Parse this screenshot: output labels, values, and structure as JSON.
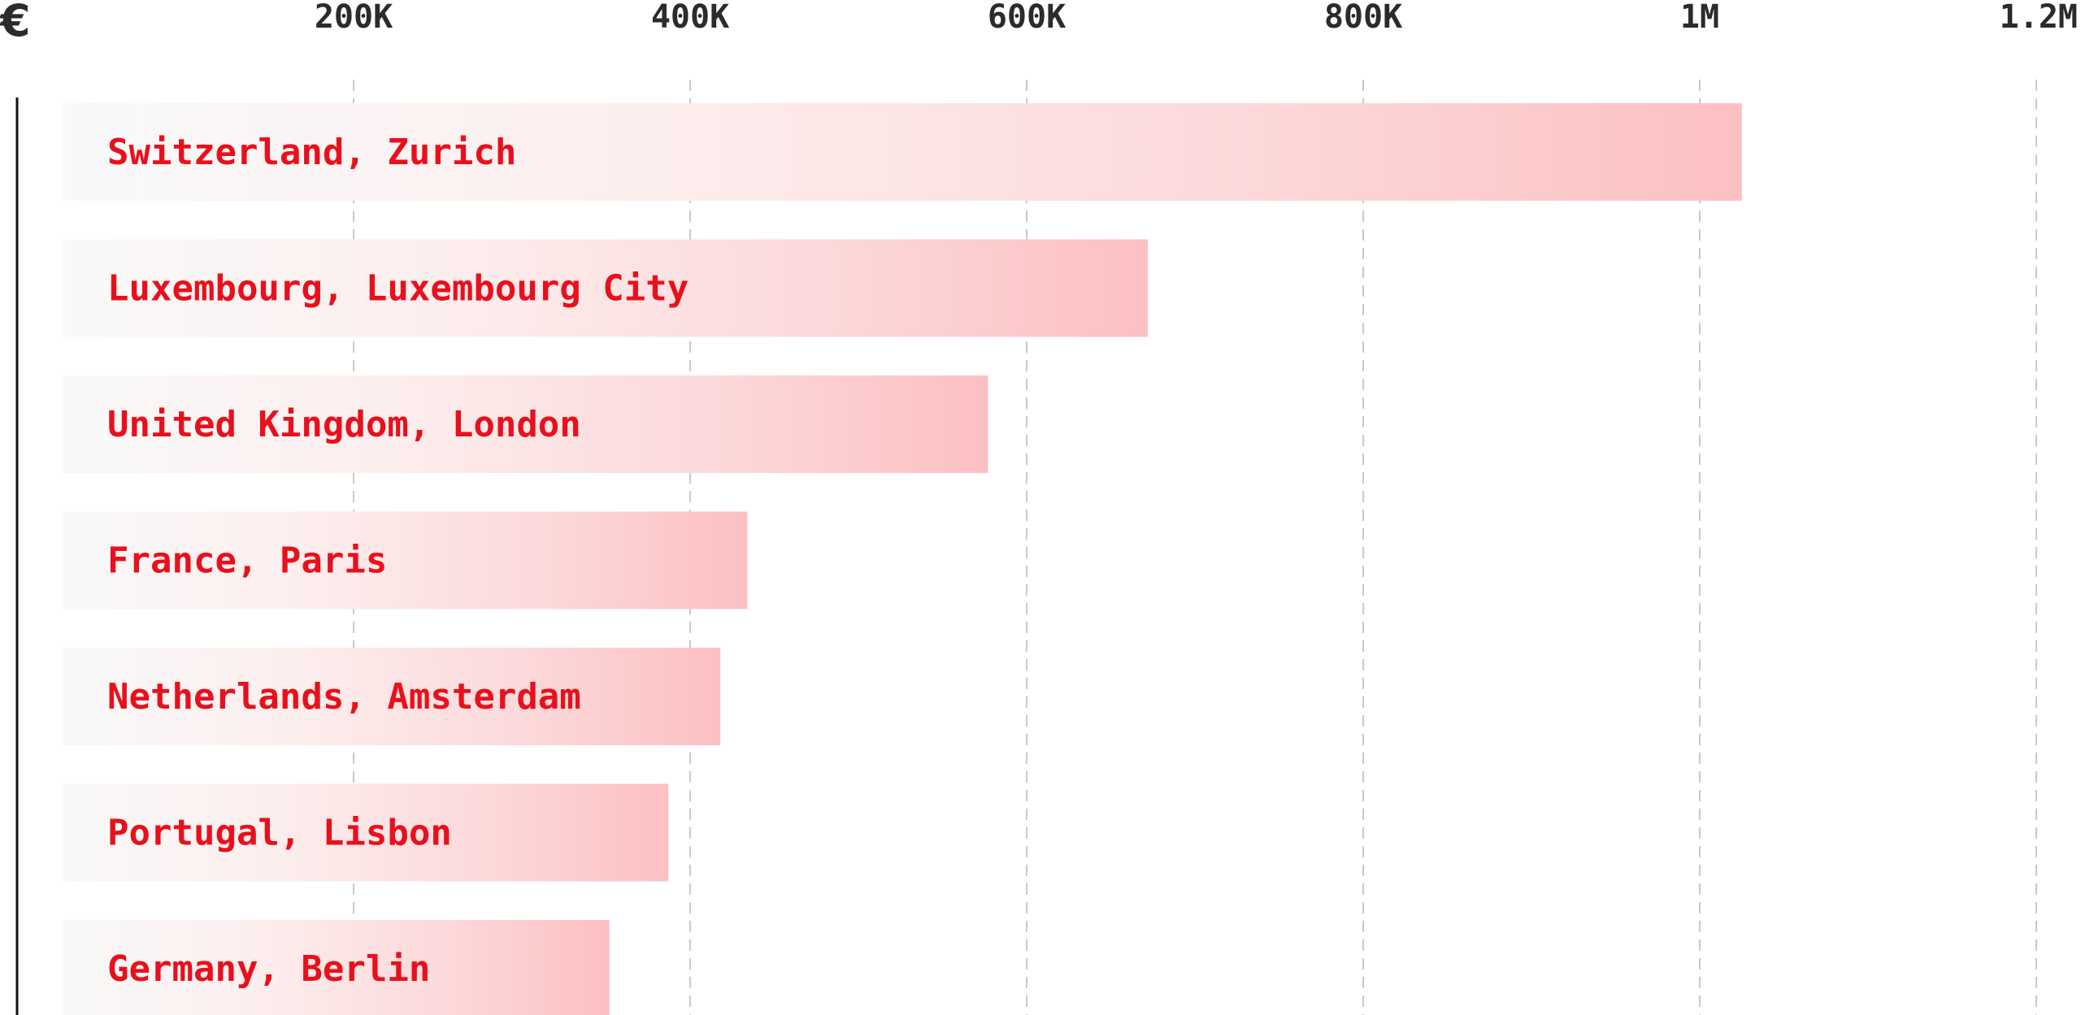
{
  "chart_data": {
    "type": "bar",
    "orientation": "horizontal",
    "axis_unit": "€",
    "xlim": [
      0,
      1200000
    ],
    "ticks": [
      {
        "value": 200000,
        "label": "200K"
      },
      {
        "value": 400000,
        "label": "400K"
      },
      {
        "value": 600000,
        "label": "600K"
      },
      {
        "value": 800000,
        "label": "800K"
      },
      {
        "value": 1000000,
        "label": "1M"
      },
      {
        "value": 1200000,
        "label": "1.2M"
      }
    ],
    "grid": true,
    "categories": [
      "Switzerland, Zurich",
      "Luxembourg, Luxembourg City",
      "United Kingdom, London",
      "France, Paris",
      "Netherlands, Amsterdam",
      "Portugal, Lisbon",
      "Germany, Berlin"
    ],
    "values": [
      1025000,
      672000,
      577000,
      434000,
      418000,
      387000,
      352000
    ],
    "colors": {
      "label": "#e8101c",
      "bar_end": "#fcc0c2",
      "bar_start": "#f9f9f9",
      "grid": "#c9c9c9",
      "axis": "#111111",
      "tick_text": "#2b2b2b"
    }
  }
}
